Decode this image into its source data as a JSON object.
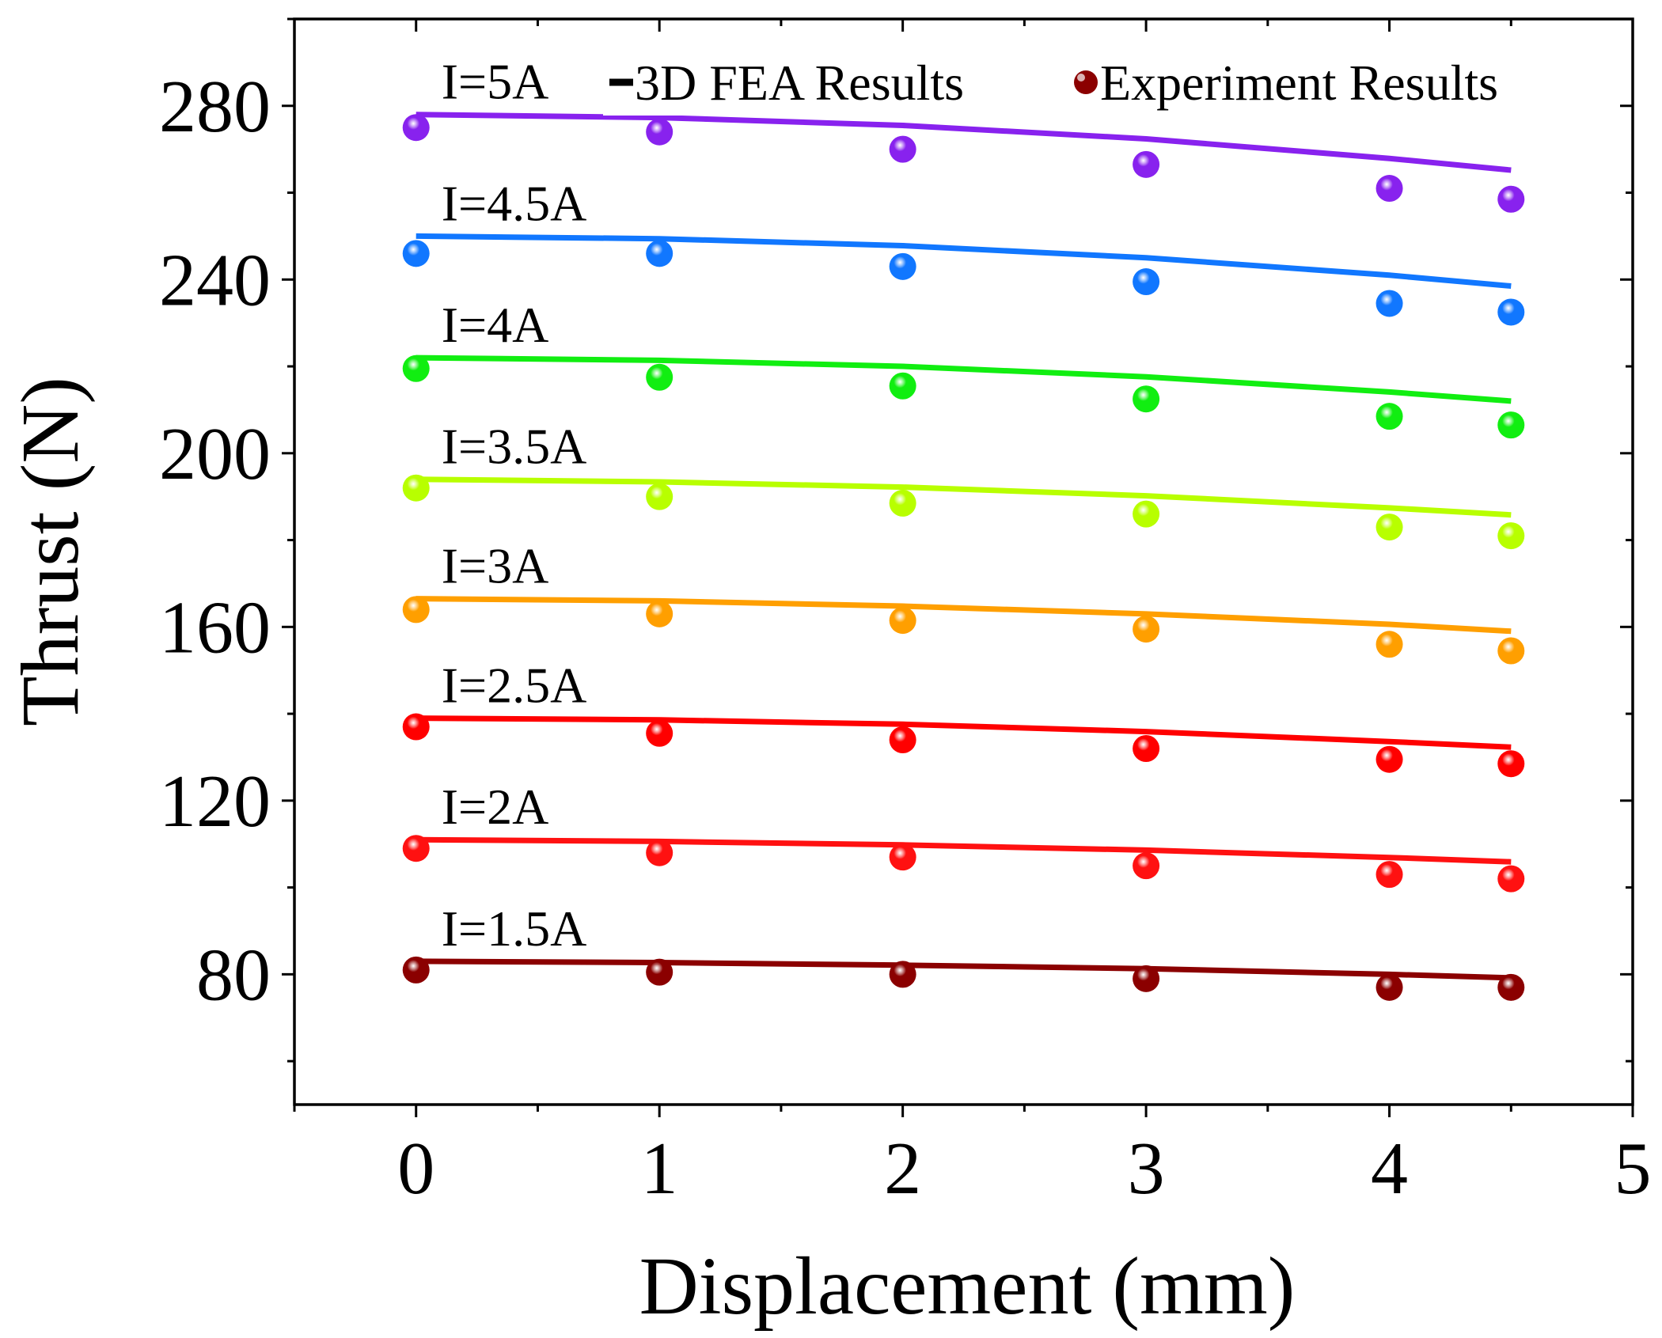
{
  "chart_data": {
    "type": "scatter",
    "title": "",
    "xlabel": "Displacement (mm)",
    "ylabel": "Thrust (N)",
    "xlim": [
      -0.5,
      5
    ],
    "ylim": [
      50,
      300
    ],
    "x_ticks": [
      0,
      1,
      2,
      3,
      4,
      5
    ],
    "x_tick_labels": [
      "0",
      "1",
      "2",
      "3",
      "4",
      "5"
    ],
    "y_ticks": [
      80,
      120,
      160,
      200,
      240,
      280
    ],
    "y_tick_labels": [
      "80",
      "120",
      "160",
      "200",
      "240",
      "280"
    ],
    "grid": false,
    "legend": {
      "placement": "top",
      "entries": [
        {
          "label": "3D FEA Results",
          "marker": "line"
        },
        {
          "label": "Experiment Results",
          "marker": "sphere"
        }
      ]
    },
    "line_x": [
      0,
      1,
      2,
      3,
      4,
      4.5
    ],
    "point_x": [
      0,
      1,
      2,
      3,
      4,
      4.5
    ],
    "series": [
      {
        "label": "I=1.5A",
        "color": "#8b0000",
        "fea": [
          83,
          82.7,
          82.1,
          81.3,
          80.0,
          79.2
        ],
        "experiment": [
          81,
          80.5,
          80,
          79,
          77,
          77
        ]
      },
      {
        "label": "I=2A",
        "color": "#ff1111",
        "fea": [
          111,
          110.6,
          109.8,
          108.6,
          106.9,
          105.9
        ],
        "experiment": [
          109,
          108,
          107,
          105,
          103,
          102
        ]
      },
      {
        "label": "I=2.5A",
        "color": "#ff0000",
        "fea": [
          139,
          138.6,
          137.6,
          135.9,
          133.6,
          132.3
        ],
        "experiment": [
          137,
          135.5,
          134,
          132,
          129.5,
          128.5
        ]
      },
      {
        "label": "I=3A",
        "color": "#ff9f00",
        "fea": [
          166.5,
          166,
          164.8,
          163,
          160.6,
          159
        ],
        "experiment": [
          164,
          163,
          161.5,
          159.5,
          156,
          154.5
        ]
      },
      {
        "label": "I=3.5A",
        "color": "#b8ff00",
        "fea": [
          194,
          193.4,
          192.2,
          190.2,
          187.4,
          185.8
        ],
        "experiment": [
          192,
          190,
          188.5,
          186,
          183,
          181
        ]
      },
      {
        "label": "I=4A",
        "color": "#11ee11",
        "fea": [
          222,
          221.4,
          220,
          217.6,
          214.1,
          212
        ],
        "experiment": [
          219.5,
          217.5,
          215.5,
          212.5,
          208.5,
          206.5
        ]
      },
      {
        "label": "I=4.5A",
        "color": "#1177ff",
        "fea": [
          250,
          249.4,
          247.8,
          245,
          241,
          238.5
        ],
        "experiment": [
          246,
          246,
          243,
          239.5,
          234.5,
          232.5
        ]
      },
      {
        "label": "I=5A",
        "color": "#8822ee",
        "fea": [
          278,
          277.3,
          275.5,
          272.4,
          267.9,
          265.2
        ],
        "experiment": [
          275,
          274,
          270,
          266.5,
          261,
          258.5
        ]
      }
    ]
  }
}
